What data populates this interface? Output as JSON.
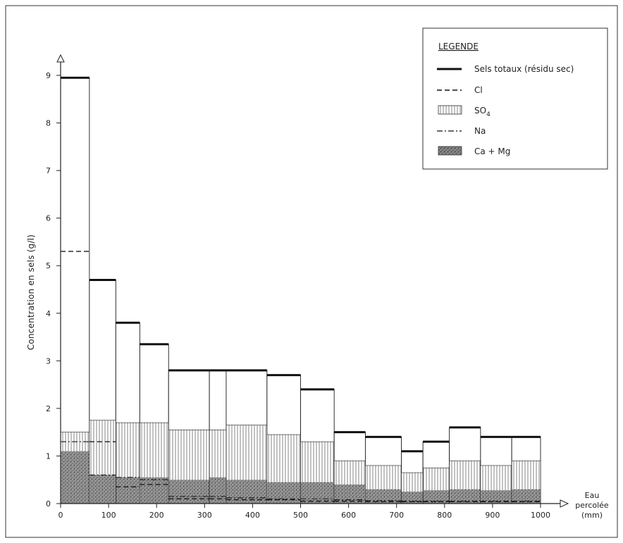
{
  "chart_data": {
    "type": "bar",
    "title": "",
    "xlabel": "Eau percolée (mm)",
    "xlabel_lines": [
      "Eau",
      "percolée",
      "(mm)"
    ],
    "ylabel": "Concentration en sels (g/l)",
    "xlim": [
      0,
      1000
    ],
    "ylim": [
      0,
      9
    ],
    "x_ticks": [
      0,
      100,
      200,
      300,
      400,
      500,
      600,
      700,
      800,
      900,
      1000
    ],
    "y_ticks": [
      0,
      1,
      2,
      3,
      4,
      5,
      6,
      7,
      8,
      9
    ],
    "grid": false,
    "legend_position": "top-right",
    "legend": {
      "title": "LEGENDE",
      "entries": [
        {
          "key": "total",
          "label": "Sels totaux (résidu sec)",
          "style": "thick-solid-line"
        },
        {
          "key": "cl",
          "label": "Cl",
          "style": "dashed-line"
        },
        {
          "key": "so4",
          "label": "SO",
          "subscript": "4",
          "style": "vertical-hatch"
        },
        {
          "key": "na",
          "label": "Na",
          "style": "dash-dot-line"
        },
        {
          "key": "camg",
          "label": "Ca + Mg",
          "style": "dark-stipple"
        }
      ]
    },
    "bins": [
      {
        "x_start": 0,
        "x_end": 60,
        "total": 8.95,
        "so4": 1.5,
        "camg": 1.1,
        "cl": 5.3,
        "na": 1.3
      },
      {
        "x_start": 60,
        "x_end": 115,
        "total": 4.7,
        "so4": 1.75,
        "camg": 0.6,
        "cl": 1.3,
        "na": 0.6
      },
      {
        "x_start": 115,
        "x_end": 165,
        "total": 3.8,
        "so4": 1.7,
        "camg": 0.55,
        "cl": 0.35,
        "na": 0.55
      },
      {
        "x_start": 165,
        "x_end": 225,
        "total": 3.35,
        "so4": 1.7,
        "camg": 0.55,
        "cl": 0.4,
        "na": 0.5
      },
      {
        "x_start": 225,
        "x_end": 310,
        "total": 2.8,
        "so4": 1.55,
        "camg": 0.5,
        "cl": 0.1,
        "na": 0.15
      },
      {
        "x_start": 310,
        "x_end": 345,
        "total": 2.8,
        "so4": 1.55,
        "camg": 0.55,
        "cl": 0.1,
        "na": 0.15
      },
      {
        "x_start": 345,
        "x_end": 430,
        "total": 2.8,
        "so4": 1.65,
        "camg": 0.5,
        "cl": 0.08,
        "na": 0.12
      },
      {
        "x_start": 430,
        "x_end": 500,
        "total": 2.7,
        "so4": 1.45,
        "camg": 0.45,
        "cl": 0.08,
        "na": 0.1
      },
      {
        "x_start": 500,
        "x_end": 570,
        "total": 2.4,
        "so4": 1.3,
        "camg": 0.45,
        "cl": 0.05,
        "na": 0.1
      },
      {
        "x_start": 570,
        "x_end": 635,
        "total": 1.5,
        "so4": 0.9,
        "camg": 0.4,
        "cl": 0.05,
        "na": 0.08
      },
      {
        "x_start": 635,
        "x_end": 710,
        "total": 1.4,
        "so4": 0.8,
        "camg": 0.3,
        "cl": 0.04,
        "na": 0.06
      },
      {
        "x_start": 710,
        "x_end": 755,
        "total": 1.1,
        "so4": 0.65,
        "camg": 0.25,
        "cl": 0.04,
        "na": 0.05
      },
      {
        "x_start": 755,
        "x_end": 810,
        "total": 1.3,
        "so4": 0.75,
        "camg": 0.28,
        "cl": 0.04,
        "na": 0.05
      },
      {
        "x_start": 810,
        "x_end": 875,
        "total": 1.6,
        "so4": 0.9,
        "camg": 0.3,
        "cl": 0.04,
        "na": 0.05
      },
      {
        "x_start": 875,
        "x_end": 940,
        "total": 1.4,
        "so4": 0.8,
        "camg": 0.28,
        "cl": 0.04,
        "na": 0.05
      },
      {
        "x_start": 940,
        "x_end": 1000,
        "total": 1.4,
        "so4": 0.9,
        "camg": 0.3,
        "cl": 0.04,
        "na": 0.05
      }
    ],
    "colors": {
      "ink": "#1a1a1a",
      "hatch": "#555555",
      "stipple": "#3a3a3a",
      "frame": "#333333"
    }
  }
}
